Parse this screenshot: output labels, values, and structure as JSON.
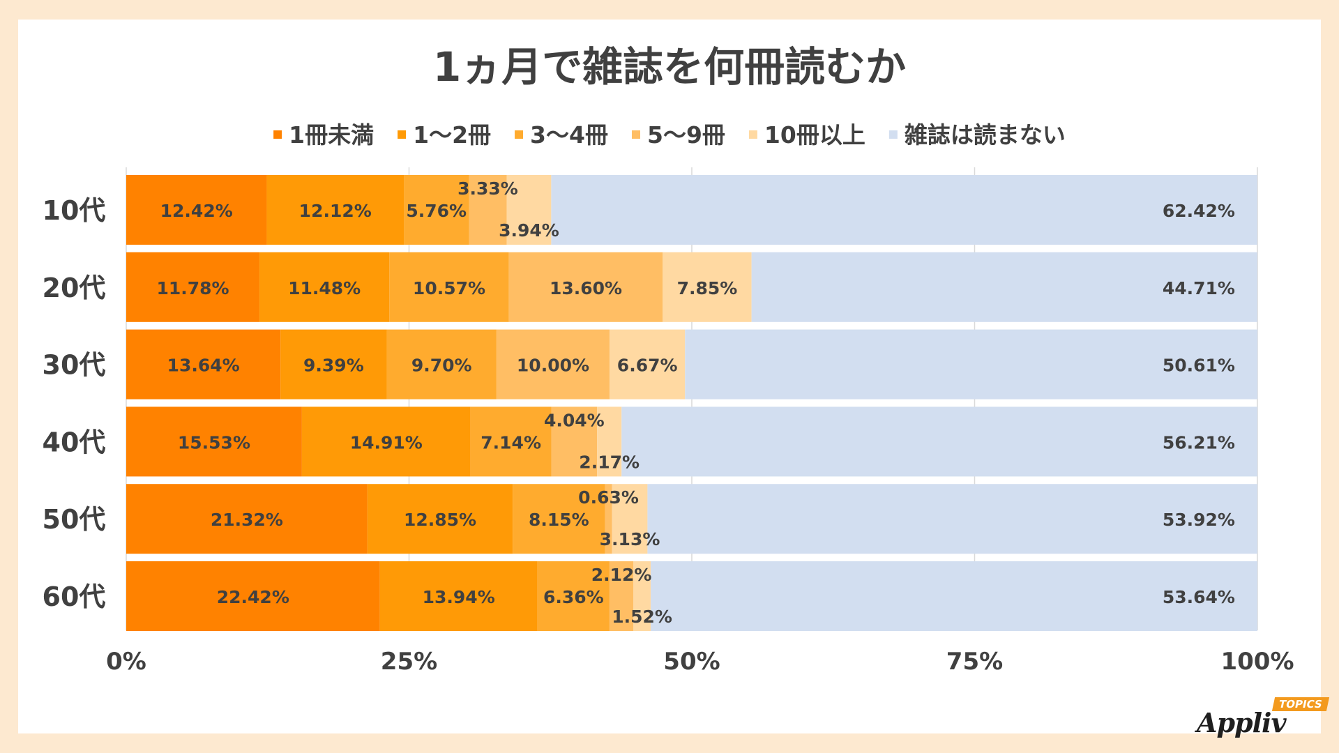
{
  "chart_data": {
    "type": "bar",
    "orientation": "horizontal",
    "stacked": true,
    "title": "1ヵ月で雑誌を何冊読むか",
    "categories": [
      "10代",
      "20代",
      "30代",
      "40代",
      "50代",
      "60代"
    ],
    "series": [
      {
        "name": "1冊未満",
        "color": "#ff8200",
        "values": [
          12.42,
          11.78,
          13.64,
          15.53,
          21.32,
          22.42
        ]
      },
      {
        "name": "1〜2冊",
        "color": "#ff9a06",
        "values": [
          12.12,
          11.48,
          9.39,
          14.91,
          12.85,
          13.94
        ]
      },
      {
        "name": "3〜4冊",
        "color": "#ffab2e",
        "values": [
          5.76,
          10.57,
          9.7,
          7.14,
          8.15,
          6.36
        ]
      },
      {
        "name": "5〜9冊",
        "color": "#ffbe64",
        "values": [
          3.33,
          13.6,
          10.0,
          4.04,
          0.63,
          2.12
        ]
      },
      {
        "name": "10冊以上",
        "color": "#ffd9a2",
        "values": [
          3.94,
          7.85,
          6.67,
          2.17,
          3.13,
          1.52
        ]
      },
      {
        "name": "雑誌は読まない",
        "color": "#d2def0",
        "values": [
          62.42,
          44.71,
          50.61,
          56.21,
          53.92,
          53.64
        ]
      }
    ],
    "data_labels": [
      [
        "12.42%",
        "12.12%",
        "5.76%",
        "3.33%",
        "3.94%",
        "62.42%"
      ],
      [
        "11.78%",
        "11.48%",
        "10.57%",
        "13.60%",
        "7.85%",
        "44.71%"
      ],
      [
        "13.64%",
        "9.39%",
        "9.70%",
        "10.00%",
        "6.67%",
        "50.61%"
      ],
      [
        "15.53%",
        "14.91%",
        "7.14%",
        "4.04%",
        "2.17%",
        "56.21%"
      ],
      [
        "21.32%",
        "12.85%",
        "8.15%",
        "0.63%",
        "3.13%",
        "53.92%"
      ],
      [
        "22.42%",
        "13.94%",
        "6.36%",
        "2.12%",
        "1.52%",
        "53.64%"
      ]
    ],
    "x_ticks": [
      0,
      25,
      50,
      75,
      100
    ],
    "x_tick_labels": [
      "0%",
      "25%",
      "50%",
      "75%",
      "100%"
    ],
    "xlim": [
      0,
      100
    ],
    "grid": true,
    "legend_position": "top"
  },
  "logo": {
    "word": "Appliv",
    "badge": "TOPICS"
  }
}
